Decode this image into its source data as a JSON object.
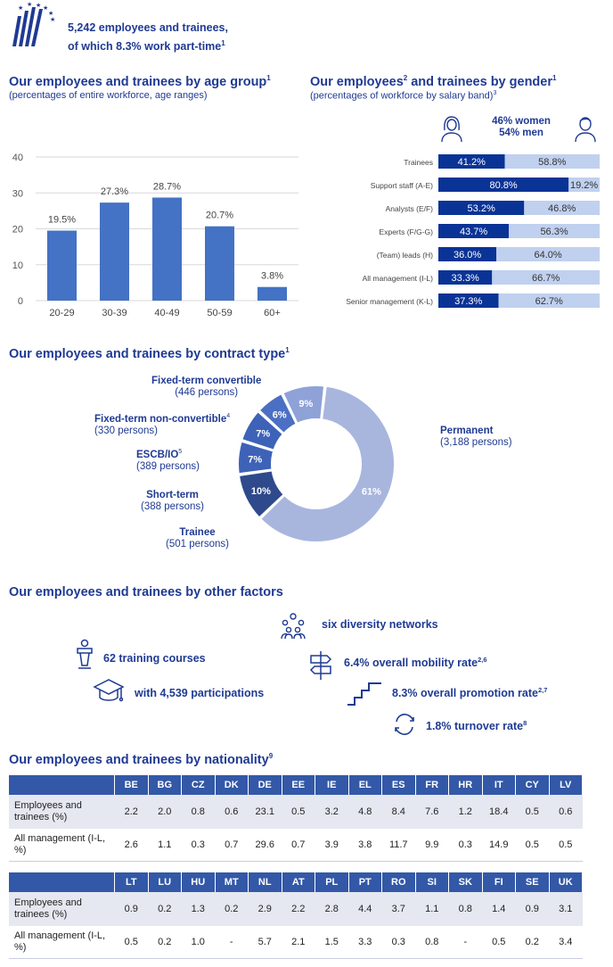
{
  "header": {
    "line1": "5,242 employees and trainees,",
    "line2": "of which 8.3% work part-time",
    "line2_sup": "1"
  },
  "age_section": {
    "title": "Our employees  and trainees by age group",
    "title_sup": "1",
    "subtitle": "(percentages of entire workforce, age ranges)"
  },
  "gender_section": {
    "title_a": "Our employees",
    "title_sup_a": "2",
    "title_b": " and trainees by gender",
    "title_sup_b": "1",
    "subtitle": "(percentages of workforce by salary band)",
    "subtitle_sup": "3",
    "women": "46% women",
    "men": "54% men"
  },
  "contract_section": {
    "title": "Our employees  and trainees by contract type",
    "title_sup": "1"
  },
  "factors_section": {
    "title": "Our employees  and trainees by other factors",
    "facts": {
      "networks": "six diversity networks",
      "training": "62 training courses",
      "participations": "with 4,539 participations",
      "mobility": "6.4% overall mobility rate",
      "mobility_sup": "2,6",
      "promotion": "8.3% overall promotion rate",
      "promotion_sup": "2,7",
      "turnover": "1.8% turnover rate",
      "turnover_sup": "8"
    }
  },
  "nationality_section": {
    "title": "Our employees and trainees by nationality",
    "title_sup": "9",
    "row_labels": [
      "Employees and trainees (%)",
      "All management (I-L, %)"
    ],
    "table1": {
      "countries": [
        "BE",
        "BG",
        "CZ",
        "DK",
        "DE",
        "EE",
        "IE",
        "EL",
        "ES",
        "FR",
        "HR",
        "IT",
        "CY",
        "LV"
      ],
      "employees": [
        "2.2",
        "2.0",
        "0.8",
        "0.6",
        "23.1",
        "0.5",
        "3.2",
        "4.8",
        "8.4",
        "7.6",
        "1.2",
        "18.4",
        "0.5",
        "0.6"
      ],
      "management": [
        "2.6",
        "1.1",
        "0.3",
        "0.7",
        "29.6",
        "0.7",
        "3.9",
        "3.8",
        "11.7",
        "9.9",
        "0.3",
        "14.9",
        "0.5",
        "0.5"
      ]
    },
    "table2": {
      "countries": [
        "LT",
        "LU",
        "HU",
        "MT",
        "NL",
        "AT",
        "PL",
        "PT",
        "RO",
        "SI",
        "SK",
        "FI",
        "SE",
        "UK"
      ],
      "employees": [
        "0.9",
        "0.2",
        "1.3",
        "0.2",
        "2.9",
        "2.2",
        "2.8",
        "4.4",
        "3.7",
        "1.1",
        "0.8",
        "1.4",
        "0.9",
        "3.1"
      ],
      "management": [
        "0.5",
        "0.2",
        "1.0",
        "-",
        "5.7",
        "2.1",
        "1.5",
        "3.3",
        "0.3",
        "0.8",
        "-",
        "0.5",
        "0.2",
        "3.4"
      ]
    }
  },
  "colors": {
    "primary": "#1f3a93",
    "bar": "#4472c4",
    "dark": "#0a3396",
    "light": "#c0d0ef",
    "donut": [
      "#a8b6de",
      "#2e4a8c",
      "#3d62b8",
      "#3d62b8",
      "#4b6fc2",
      "#8ea2d8"
    ]
  },
  "chart_data": [
    {
      "type": "bar",
      "categories": [
        "20-29",
        "30-39",
        "40-49",
        "50-59",
        "60+"
      ],
      "values": [
        19.5,
        27.3,
        28.7,
        20.7,
        3.8
      ],
      "value_labels": [
        "19.5%",
        "27.3%",
        "28.7%",
        "20.7%",
        "3.8%"
      ],
      "yticks": [
        "0",
        "10",
        "20",
        "30",
        "40"
      ],
      "ylim": [
        0,
        40
      ],
      "grid": true
    },
    {
      "type": "bar",
      "orientation": "horizontal-stacked",
      "categories": [
        "Trainees",
        "Support staff (A-E)",
        "Analysts (E/F)",
        "Experts (F/G-G)",
        "(Team) leads (H)",
        "All management (I-L)",
        "Senior management (K-L)"
      ],
      "series": [
        {
          "values": [
            41.2,
            80.8,
            53.2,
            43.7,
            36.0,
            33.3,
            37.3
          ],
          "labels": [
            "41.2%",
            "80.8%",
            "53.2%",
            "43.7%",
            "36.0%",
            "33.3%",
            "37.3%"
          ]
        },
        {
          "values": [
            58.8,
            19.2,
            46.8,
            56.3,
            64.0,
            66.7,
            62.7
          ],
          "labels": [
            "58.8%",
            "19.2%",
            "46.8%",
            "56.3%",
            "64.0%",
            "66.7%",
            "62.7%"
          ]
        }
      ],
      "xlim": [
        0,
        100
      ]
    },
    {
      "type": "pie",
      "donut": true,
      "slices": [
        {
          "name": "Permanent",
          "persons": "(3,188 persons)",
          "value": 61,
          "label": "61%"
        },
        {
          "name": "Trainee",
          "persons": "(501 persons)",
          "value": 10,
          "label": "10%"
        },
        {
          "name": "Short-term",
          "persons": "(388 persons)",
          "value": 7,
          "label": "7%"
        },
        {
          "name": "ESCB/IO",
          "name_sup": "5",
          "persons": "(389 persons)",
          "value": 7,
          "label": "7%"
        },
        {
          "name": "Fixed-term non-convertible",
          "name_sup": "4",
          "persons": "(330 persons)",
          "value": 6,
          "label": "6%"
        },
        {
          "name": "Fixed-term convertible",
          "persons": "(446 persons)",
          "value": 9,
          "label": "9%"
        }
      ]
    }
  ]
}
